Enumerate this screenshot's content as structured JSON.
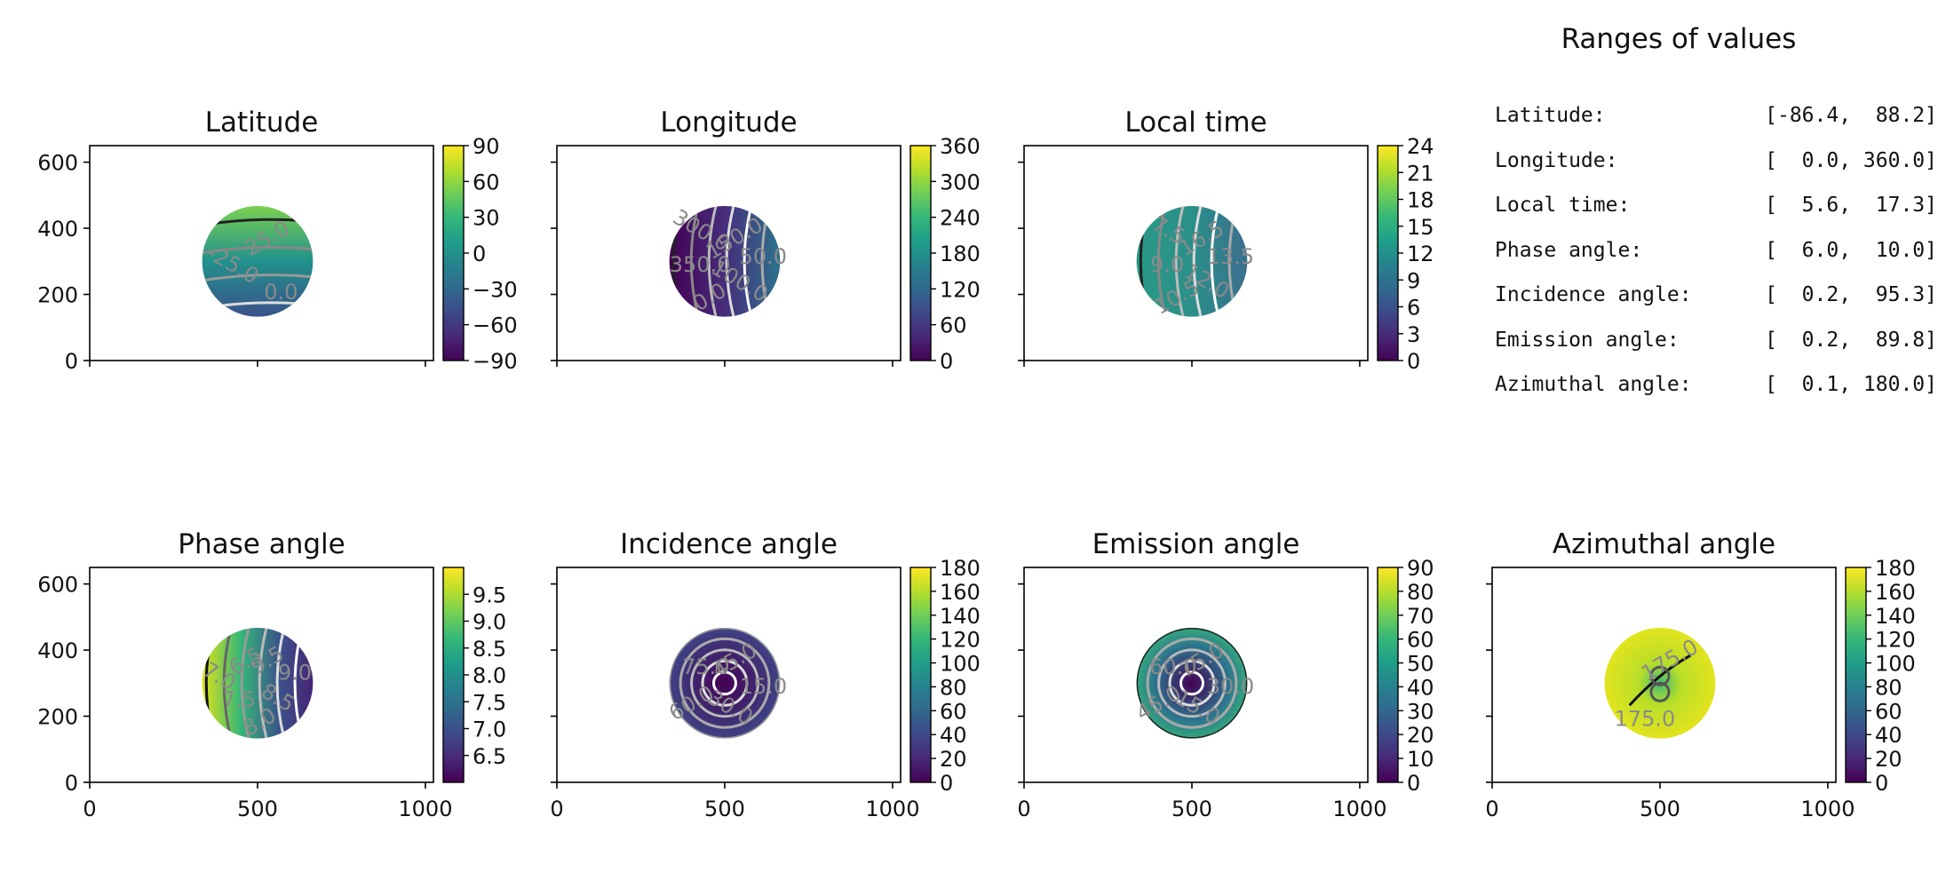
{
  "chart_data": [
    {
      "type": "heatmap",
      "title": "Latitude",
      "xlim": [
        0,
        1024
      ],
      "ylim": [
        0,
        650
      ],
      "xticks": [
        0,
        500,
        1000
      ],
      "yticks": [
        0,
        200,
        400,
        600
      ],
      "colorbar_ticks": [
        90,
        60,
        30,
        0,
        -30,
        -60,
        -90
      ],
      "colorbar_range": [
        -90,
        90
      ],
      "colormap": "viridis",
      "contour_labels": [
        "25.0",
        "0.0",
        "-25.0"
      ]
    },
    {
      "type": "heatmap",
      "title": "Longitude",
      "xlim": [
        0,
        1024
      ],
      "ylim": [
        0,
        650
      ],
      "xticks": [
        0,
        500,
        1000
      ],
      "yticks": [
        0,
        200,
        400,
        600
      ],
      "colorbar_ticks": [
        360,
        300,
        240,
        180,
        120,
        60,
        0
      ],
      "colorbar_range": [
        0,
        360
      ],
      "colormap": "viridis",
      "contour_labels": [
        "150.0",
        "50.0",
        "100.0",
        "0.0",
        "350.0",
        "300.0"
      ]
    },
    {
      "type": "heatmap",
      "title": "Local time",
      "xlim": [
        0,
        1024
      ],
      "ylim": [
        0,
        650
      ],
      "xticks": [
        0,
        500,
        1000
      ],
      "yticks": [
        0,
        200,
        400,
        600
      ],
      "colorbar_ticks": [
        24,
        21,
        18,
        15,
        12,
        9,
        6,
        3,
        0
      ],
      "colorbar_range": [
        0,
        24
      ],
      "colormap": "viridis",
      "contour_labels": [
        "16.5",
        "13.5",
        "12.0",
        "10.5",
        "9.0",
        "7.5"
      ]
    },
    {
      "type": "heatmap",
      "title": "Phase angle",
      "xlim": [
        0,
        1024
      ],
      "ylim": [
        0,
        650
      ],
      "xticks": [
        0,
        500,
        1000
      ],
      "yticks": [
        0,
        200,
        400,
        600
      ],
      "colorbar_ticks": [
        "9.5",
        "9.0",
        "8.5",
        "8.0",
        "7.5",
        "7.0",
        "6.5"
      ],
      "colorbar_range": [
        6.0,
        10.0
      ],
      "colormap": "viridis",
      "contour_labels": [
        "9.5",
        "9.0",
        "8.5",
        "8.0",
        "7.5",
        "7.0",
        "6.5"
      ]
    },
    {
      "type": "heatmap",
      "title": "Incidence angle",
      "xlim": [
        0,
        1024
      ],
      "ylim": [
        0,
        650
      ],
      "xticks": [
        0,
        500,
        1000
      ],
      "yticks": [
        0,
        200,
        400,
        600
      ],
      "colorbar_ticks": [
        180,
        160,
        140,
        120,
        100,
        80,
        60,
        40,
        20,
        0
      ],
      "colorbar_range": [
        0,
        180
      ],
      "colormap": "viridis",
      "contour_labels": [
        "45.0",
        "15.0",
        "30.0",
        "60.0",
        "75.0"
      ]
    },
    {
      "type": "heatmap",
      "title": "Emission angle",
      "xlim": [
        0,
        1024
      ],
      "ylim": [
        0,
        650
      ],
      "xticks": [
        0,
        500,
        1000
      ],
      "yticks": [
        0,
        200,
        400,
        600
      ],
      "colorbar_ticks": [
        90,
        80,
        70,
        60,
        50,
        40,
        30,
        20,
        10,
        0
      ],
      "colorbar_range": [
        0,
        90
      ],
      "colormap": "viridis",
      "contour_labels": [
        "75.0",
        "30.0",
        "15.0",
        "45.0",
        "60.0"
      ]
    },
    {
      "type": "heatmap",
      "title": "Azimuthal angle",
      "xlim": [
        0,
        1024
      ],
      "ylim": [
        0,
        650
      ],
      "xticks": [
        0,
        500,
        1000
      ],
      "yticks": [
        0,
        200,
        400,
        600
      ],
      "colorbar_ticks": [
        180,
        160,
        140,
        120,
        100,
        80,
        60,
        40,
        20,
        0
      ],
      "colorbar_range": [
        0,
        180
      ],
      "colormap": "viridis",
      "contour_labels": [
        "175.0",
        "175.0"
      ]
    }
  ],
  "ranges": {
    "title": "Ranges of values",
    "rows": [
      {
        "label": "Latitude:",
        "value": "[-86.4,  88.2]"
      },
      {
        "label": "Longitude:",
        "value": "[  0.0, 360.0]"
      },
      {
        "label": "Local time:",
        "value": "[  5.6,  17.3]"
      },
      {
        "label": "Phase angle:",
        "value": "[  6.0,  10.0]"
      },
      {
        "label": "Incidence angle:",
        "value": "[  0.2,  95.3]"
      },
      {
        "label": "Emission angle:",
        "value": "[  0.2,  89.8]"
      },
      {
        "label": "Azimuthal angle:",
        "value": "[  0.1, 180.0]"
      }
    ]
  }
}
